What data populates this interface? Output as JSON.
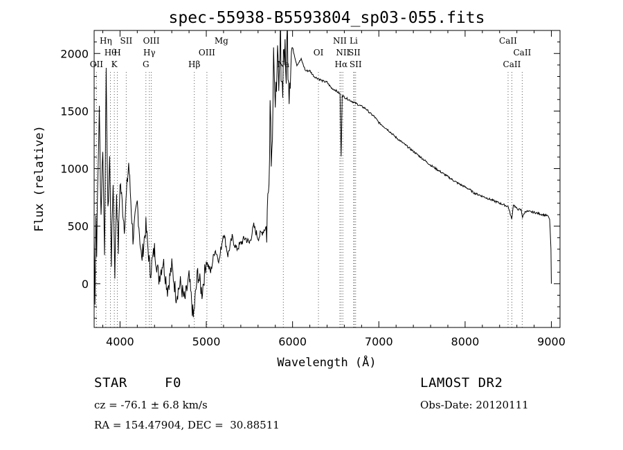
{
  "chart_data": {
    "type": "line",
    "title": "spec-55938-B5593804_sp03-055.fits",
    "xlabel": "Wavelength (Å)",
    "ylabel": "Flux (relative)",
    "xlim": [
      3700,
      9100
    ],
    "ylim": [
      -380,
      2200
    ],
    "x_ticks": [
      4000,
      5000,
      6000,
      7000,
      8000,
      9000
    ],
    "y_ticks": [
      0,
      500,
      1000,
      1500,
      2000
    ],
    "grid": false,
    "legend": "none",
    "line_color": "#000000",
    "line_marker_color": "#555555",
    "series": [
      {
        "x": [
          3700,
          3710,
          3720,
          3730,
          3740,
          3760,
          3780,
          3800,
          3820,
          3840,
          3860,
          3880,
          3900,
          3920,
          3940,
          3960,
          3980,
          4000,
          4050,
          4100,
          4150,
          4200,
          4250,
          4300,
          4350,
          4400,
          4450,
          4500,
          4550,
          4600,
          4650,
          4700,
          4750,
          4800,
          4850,
          4900,
          4950,
          5000,
          5050,
          5100,
          5150,
          5200,
          5250,
          5300,
          5350,
          5400,
          5450,
          5500,
          5550,
          5600,
          5650,
          5700,
          5720,
          5740,
          5760,
          5780,
          5800,
          5820,
          5840,
          5860,
          5880,
          5900,
          5920,
          5940,
          5960,
          5980,
          6000,
          6050,
          6100,
          6150,
          6200,
          6250,
          6300,
          6350,
          6400,
          6450,
          6500,
          6530,
          6550,
          6563,
          6575,
          6600,
          6650,
          6700,
          6750,
          6800,
          6850,
          6900,
          6950,
          7000,
          7100,
          7200,
          7300,
          7400,
          7500,
          7600,
          7700,
          7800,
          7900,
          8000,
          8050,
          8100,
          8200,
          8300,
          8400,
          8500,
          8540,
          8560,
          8600,
          8650,
          8665,
          8700,
          8800,
          8900,
          8960,
          8980,
          8995,
          9000
        ],
        "y": [
          400,
          -120,
          600,
          300,
          800,
          1500,
          600,
          1200,
          300,
          1800,
          600,
          1100,
          200,
          900,
          100,
          800,
          300,
          900,
          500,
          1050,
          400,
          700,
          200,
          500,
          100,
          300,
          50,
          200,
          -50,
          150,
          -100,
          0,
          -150,
          50,
          -300,
          100,
          -80,
          200,
          100,
          300,
          200,
          450,
          250,
          400,
          300,
          350,
          400,
          350,
          500,
          400,
          450,
          500,
          800,
          1600,
          1100,
          2150,
          1300,
          2100,
          1500,
          2150,
          1700,
          2100,
          1800,
          2150,
          1750,
          2000,
          2050,
          1900,
          1950,
          1850,
          1850,
          1800,
          1780,
          1760,
          1750,
          1700,
          1680,
          1660,
          1650,
          1100,
          1640,
          1620,
          1600,
          1580,
          1560,
          1540,
          1520,
          1480,
          1450,
          1400,
          1340,
          1270,
          1210,
          1150,
          1090,
          1030,
          980,
          930,
          880,
          840,
          820,
          790,
          760,
          730,
          700,
          670,
          560,
          690,
          650,
          640,
          580,
          630,
          620,
          600,
          590,
          560,
          300,
          0
        ]
      }
    ],
    "line_marks": [
      {
        "x": 3727,
        "label": "OII",
        "row": 2
      },
      {
        "x": 3835,
        "label": "Hη",
        "row": 0
      },
      {
        "x": 3889,
        "label": "Hθ",
        "row": 1
      },
      {
        "x": 3934,
        "label": "K",
        "row": 2
      },
      {
        "x": 3969,
        "label": "H",
        "row": 1
      },
      {
        "x": 4072,
        "label": "SII",
        "row": 0
      },
      {
        "x": 4300,
        "label": "G",
        "row": 2
      },
      {
        "x": 4340,
        "label": "Hγ",
        "row": 1
      },
      {
        "x": 4363,
        "label": "OIII",
        "row": 0
      },
      {
        "x": 4861,
        "label": "Hβ",
        "row": 2
      },
      {
        "x": 5007,
        "label": "OIII",
        "row": 1
      },
      {
        "x": 5175,
        "label": "Mg",
        "row": 0
      },
      {
        "x": 5893,
        "label": "Na",
        "row": 2
      },
      {
        "x": 6300,
        "label": "OI",
        "row": 1
      },
      {
        "x": 6548,
        "label": "NII",
        "row": 0
      },
      {
        "x": 6563,
        "label": "Hα",
        "row": 2
      },
      {
        "x": 6583,
        "label": "NII",
        "row": 1
      },
      {
        "x": 6708,
        "label": "Li",
        "row": 0
      },
      {
        "x": 6716,
        "label": "SII",
        "row": 1
      },
      {
        "x": 6731,
        "label": "SII",
        "row": 2
      },
      {
        "x": 8498,
        "label": "CaII",
        "row": 0
      },
      {
        "x": 8542,
        "label": "CaII",
        "row": 2
      },
      {
        "x": 8662,
        "label": "CaII",
        "row": 1
      }
    ]
  },
  "info": {
    "object_class": "STAR",
    "subclass": "F0",
    "survey": "LAMOST DR2",
    "cz": "cz = -76.1 ± 6.8 km/s",
    "obs_date": "Obs-Date: 20120111",
    "coords": "RA = 154.47904, DEC =  30.88511"
  }
}
